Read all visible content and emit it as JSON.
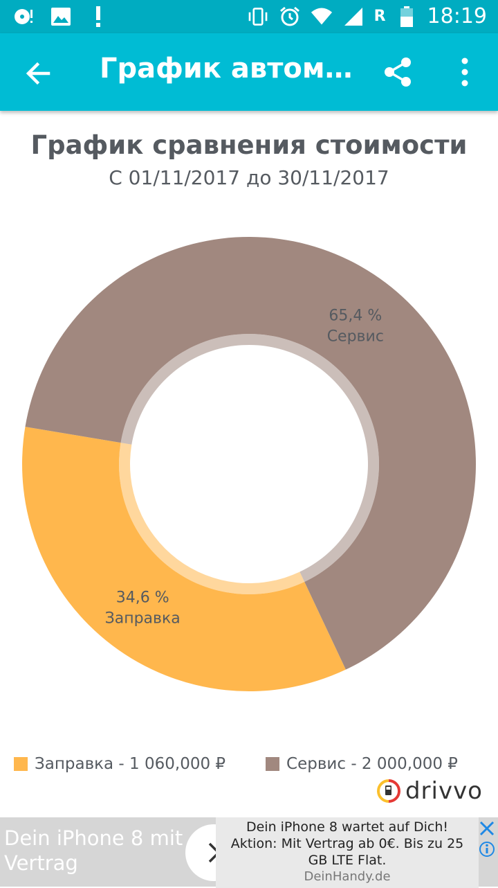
{
  "status_bar": {
    "time": "18:19",
    "roaming": "R",
    "left_icons": [
      "media-icon",
      "image-icon",
      "alert-icon"
    ],
    "right_icons": [
      "vibrate-icon",
      "alarm-icon",
      "wifi-icon",
      "signal-icon",
      "battery-icon"
    ]
  },
  "appbar": {
    "title": "График автомобиля",
    "bg_color": "#00bcd4"
  },
  "chart_data": {
    "type": "pie",
    "title": "График сравнения стоимости",
    "subtitle": "С 01/11/2017 до 30/11/2017",
    "categories": [
      "Заправка",
      "Сервис"
    ],
    "values": [
      1060000,
      2000000
    ],
    "percent_labels": [
      "34,6 %",
      "65,4 %"
    ],
    "colors": [
      "#ffb74d",
      "#a1887f"
    ],
    "legend": [
      "Заправка - 1 060,000 ₽",
      "Сервис - 2 000,000 ₽"
    ],
    "legend_position": "bottom",
    "donut": true
  },
  "brand": {
    "name": "drivvo"
  },
  "ad": {
    "headline": "Dein iPhone 8 mit Vertrag",
    "body_line1": "Dein iPhone 8 wartet auf Dich!",
    "body_line2": "Aktion: Mit Vertrag ab 0€. Bis zu 25",
    "body_line3": "GB LTE Flat.",
    "domain": "DeinHandy.de"
  }
}
